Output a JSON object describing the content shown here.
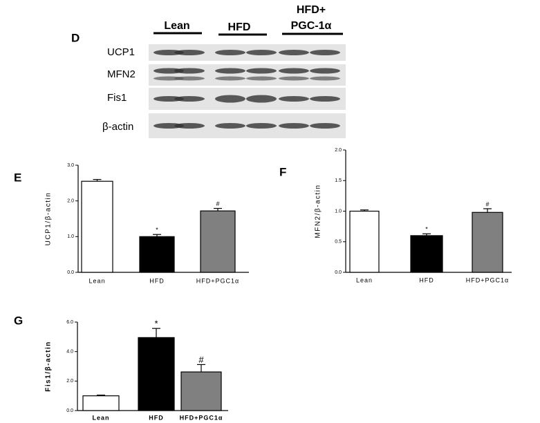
{
  "blot": {
    "panel": "D",
    "groups": [
      [
        "Lean"
      ],
      [
        "HFD"
      ],
      [
        "HFD+",
        "PGC-1α"
      ]
    ],
    "rows": [
      "UCP1",
      "MFN2",
      "Fis1",
      "β-actin"
    ]
  },
  "chart_data": [
    {
      "type": "bar",
      "panel": "E",
      "ylabel": "UCP1/β-actin",
      "categories": [
        "Lean",
        "HFD",
        "HFD+PGC1α"
      ],
      "values": [
        2.55,
        1.0,
        1.72
      ],
      "errors": [
        0.05,
        0.06,
        0.07
      ],
      "colors": [
        "#ffffff",
        "#000000",
        "#808080"
      ],
      "markers": [
        null,
        "*",
        "#"
      ],
      "ylim": [
        0,
        3
      ],
      "yticks": [
        {
          "value": 0,
          "label": "0.0"
        },
        {
          "value": 1,
          "label": "1.0"
        },
        {
          "value": 2,
          "label": "2.0"
        },
        {
          "value": 3,
          "label": "3.0"
        }
      ]
    },
    {
      "type": "bar",
      "panel": "F",
      "ylabel": "MFN2/β-actin",
      "categories": [
        "Lean",
        "HFD",
        "HFD+PGC1α"
      ],
      "values": [
        1.0,
        0.6,
        0.98
      ],
      "errors": [
        0.02,
        0.03,
        0.06
      ],
      "colors": [
        "#ffffff",
        "#000000",
        "#808080"
      ],
      "markers": [
        null,
        "*",
        "#"
      ],
      "ylim": [
        0,
        2
      ],
      "yticks": [
        {
          "value": 0,
          "label": "0.0"
        },
        0.5,
        {
          "value": 1,
          "label": "1.0"
        },
        1.5,
        {
          "value": 2,
          "label": "2.0"
        }
      ]
    },
    {
      "type": "bar",
      "panel": "G",
      "ylabel": "Fis1/β-actin",
      "categories": [
        "Lean",
        "HFD",
        "HFD+PGC1α"
      ],
      "values": [
        1.0,
        4.95,
        2.62
      ],
      "errors": [
        0.05,
        0.62,
        0.5
      ],
      "colors": [
        "#ffffff",
        "#000000",
        "#808080"
      ],
      "markers": [
        null,
        "*",
        "#"
      ],
      "ylim": [
        0,
        6
      ],
      "yticks": [
        {
          "value": 0,
          "label": "0.0"
        },
        {
          "value": 2,
          "label": "2.0"
        },
        {
          "value": 4,
          "label": "4.0"
        },
        {
          "value": 6,
          "label": "6.0"
        }
      ]
    }
  ]
}
